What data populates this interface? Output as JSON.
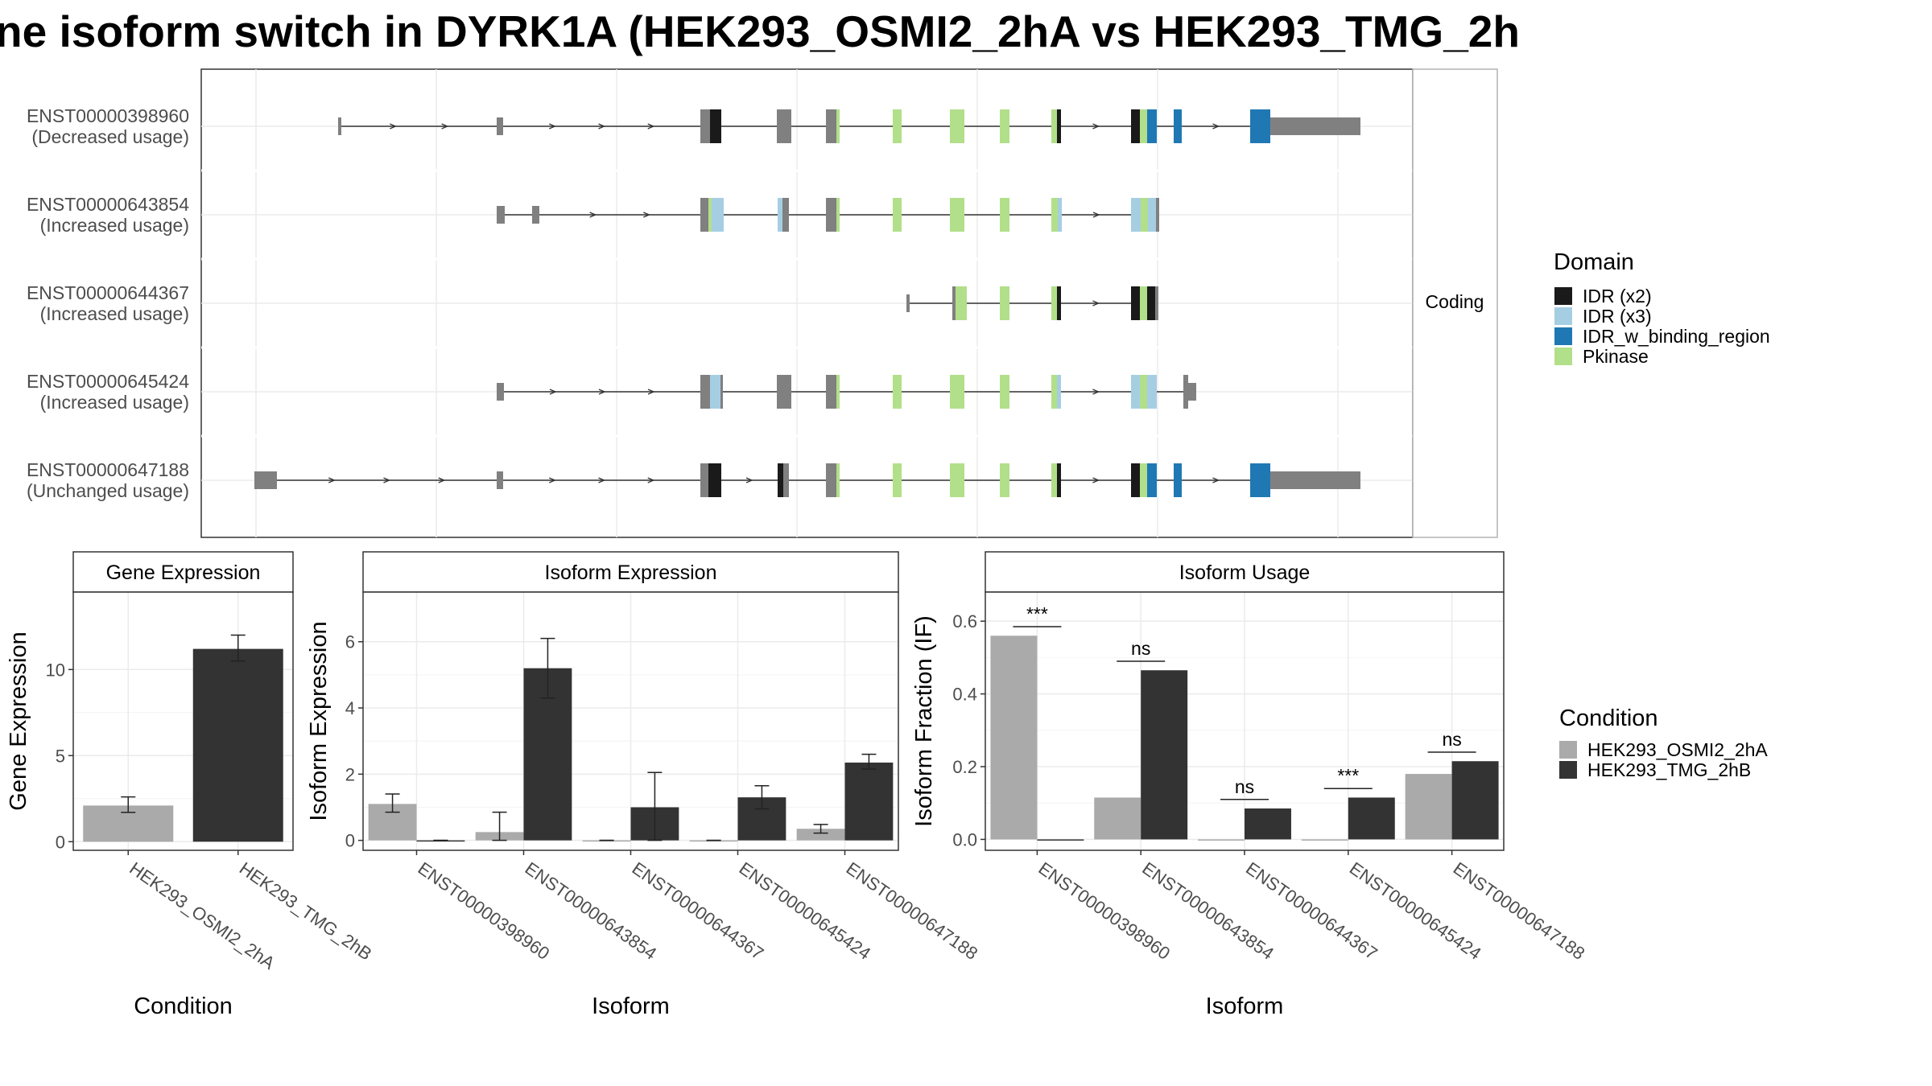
{
  "title": "ne isoform switch in DYRK1A (HEK293_OSMI2_2hA vs HEK293_TMG_2h",
  "colors": {
    "IDR (x2)": "#1a1a1a",
    "IDR (x3)": "#a6cee3",
    "IDR_w_binding_region": "#1f78b4",
    "Pkinase": "#b2df8a",
    "non_domain": "#808080",
    "condA": "#aaaaaa",
    "condB": "#333333"
  },
  "chart_data": [
    {
      "type": "gene-structure",
      "panel_label": "Coding",
      "transcripts": [
        {
          "id": "ENST00000398960",
          "usage": "(Decreased usage)"
        },
        {
          "id": "ENST00000643854",
          "usage": "(Increased usage)"
        },
        {
          "id": "ENST00000644367",
          "usage": "(Increased usage)"
        },
        {
          "id": "ENST00000645424",
          "usage": "(Increased usage)"
        },
        {
          "id": "ENST00000647188",
          "usage": "(Unchanged usage)"
        }
      ],
      "legend_title": "Domain",
      "legend": [
        "IDR (x2)",
        "IDR (x3)",
        "IDR_w_binding_region",
        "Pkinase"
      ]
    },
    {
      "type": "bar",
      "strip": "Gene Expression",
      "xlabel": "Condition",
      "ylabel": "Gene Expression",
      "ylim": [
        -0.5,
        14.5
      ],
      "yticks": [
        0,
        5,
        10
      ],
      "categories": [
        "HEK293_OSMI2_2hA",
        "HEK293_TMG_2hB"
      ],
      "series": [
        {
          "name": "HEK293_OSMI2_2hA",
          "values": [
            2.1,
            null
          ],
          "err": [
            [
              1.7,
              2.6
            ],
            null
          ]
        },
        {
          "name": "HEK293_TMG_2hB",
          "values": [
            null,
            11.2
          ],
          "err": [
            null,
            [
              10.5,
              12.0
            ]
          ]
        }
      ]
    },
    {
      "type": "bar",
      "strip": "Isoform Expression",
      "xlabel": "Isoform",
      "ylabel": "Isoform Expression",
      "ylim": [
        -0.3,
        7.5
      ],
      "yticks": [
        0,
        2,
        4,
        6
      ],
      "categories": [
        "ENST00000398960",
        "ENST00000643854",
        "ENST00000644367",
        "ENST00000645424",
        "ENST00000647188"
      ],
      "series": [
        {
          "name": "HEK293_OSMI2_2hA",
          "values": [
            1.1,
            0.25,
            0.0,
            0.0,
            0.35
          ],
          "err": [
            [
              0.85,
              1.4
            ],
            [
              0.0,
              0.85
            ],
            [
              0.0,
              0.0
            ],
            [
              0.0,
              0.0
            ],
            [
              0.22,
              0.48
            ]
          ]
        },
        {
          "name": "HEK293_TMG_2hB",
          "values": [
            0.0,
            5.2,
            1.0,
            1.3,
            2.35
          ],
          "err": [
            [
              0.0,
              0.0
            ],
            [
              4.3,
              6.1
            ],
            [
              0.0,
              2.05
            ],
            [
              0.95,
              1.65
            ],
            [
              2.15,
              2.6
            ]
          ]
        }
      ]
    },
    {
      "type": "bar",
      "strip": "Isoform Usage",
      "xlabel": "Isoform",
      "ylabel": "Isoform Fraction (IF)",
      "ylim": [
        -0.03,
        0.68
      ],
      "yticks": [
        "0.0",
        "0.2",
        "0.4",
        "0.6"
      ],
      "categories": [
        "ENST00000398960",
        "ENST00000643854",
        "ENST00000644367",
        "ENST00000645424",
        "ENST00000647188"
      ],
      "series": [
        {
          "name": "HEK293_OSMI2_2hA",
          "values": [
            0.56,
            0.115,
            0.0,
            0.0,
            0.18
          ]
        },
        {
          "name": "HEK293_TMG_2hB",
          "values": [
            0.0,
            0.465,
            0.085,
            0.115,
            0.215
          ]
        }
      ],
      "significance": [
        "***",
        "ns",
        "ns",
        "***",
        "ns"
      ]
    }
  ],
  "condition_legend": {
    "title": "Condition",
    "items": [
      "HEK293_OSMI2_2hA",
      "HEK293_TMG_2hB"
    ]
  }
}
